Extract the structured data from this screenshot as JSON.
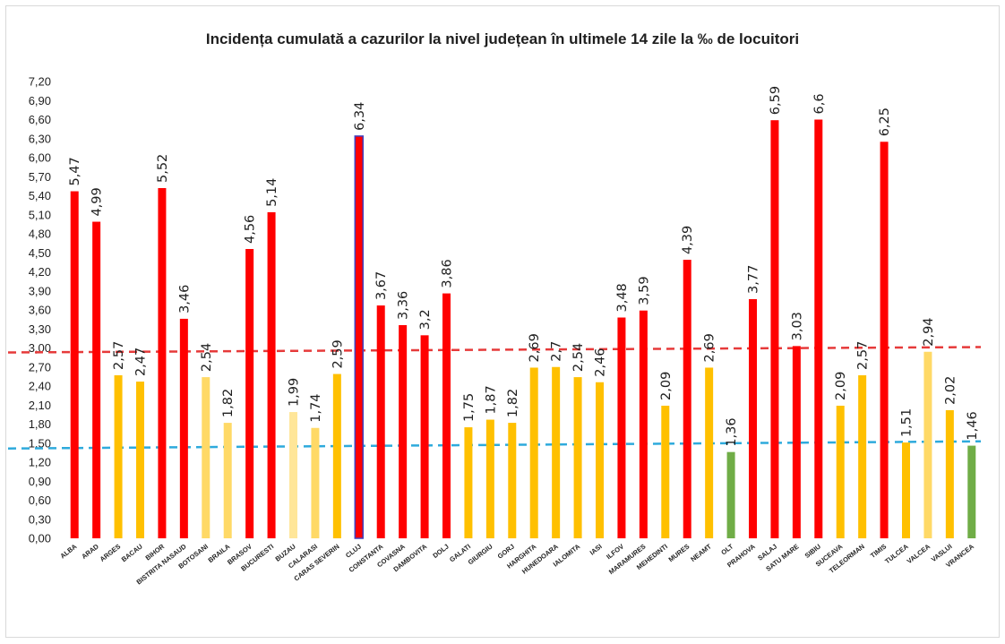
{
  "chart_data": {
    "type": "bar",
    "title": "Incidența cumulată a cazurilor la nivel județean în ultimele 14 zile la ‰ de locuitori",
    "xlabel": "",
    "ylabel": "",
    "ylim": [
      0,
      7.2
    ],
    "y_ticks": [
      "0,00",
      "0,30",
      "0,60",
      "0,90",
      "1,20",
      "1,50",
      "1,80",
      "2,10",
      "2,40",
      "2,70",
      "3,00",
      "3,30",
      "3,60",
      "3,90",
      "4,20",
      "4,50",
      "4,80",
      "5,10",
      "5,40",
      "5,70",
      "6,00",
      "6,30",
      "6,60",
      "6,90",
      "7,20"
    ],
    "grid": false,
    "legend": "none",
    "categories": [
      "ALBA",
      "ARAD",
      "ARGES",
      "BACAU",
      "BIHOR",
      "BISTRITA NASAUD",
      "BOTOSANI",
      "BRAILA",
      "BRASOV",
      "BUCURESTI",
      "BUZAU",
      "CALARASI",
      "CARAS SEVERIN",
      "CLUJ",
      "CONSTANTA",
      "COVASNA",
      "DAMBOVITA",
      "DOLJ",
      "GALATI",
      "GIURGIU",
      "GORJ",
      "HARGHITA",
      "HUNEDOARA",
      "IALOMITA",
      "IASI",
      "ILFOV",
      "MARAMURES",
      "MEHEDINTI",
      "MURES",
      "NEAMT",
      "OLT",
      "PRAHOVA",
      "SALAJ",
      "SATU MARE",
      "SIBIU",
      "SUCEAVA",
      "TELEORMAN",
      "TIMIS",
      "TULCEA",
      "VALCEA",
      "VASLUI",
      "VRANCEA"
    ],
    "values": [
      5.47,
      4.99,
      2.57,
      2.47,
      5.52,
      3.46,
      2.54,
      1.82,
      4.56,
      5.14,
      1.99,
      1.74,
      2.59,
      6.34,
      3.67,
      3.36,
      3.2,
      3.86,
      1.75,
      1.87,
      1.82,
      2.69,
      2.7,
      2.54,
      2.46,
      3.48,
      3.59,
      2.09,
      4.39,
      2.69,
      1.36,
      3.77,
      6.59,
      3.03,
      6.6,
      2.09,
      2.57,
      6.25,
      1.51,
      2.94,
      2.02,
      1.46
    ],
    "value_labels": [
      "5,47",
      "4,99",
      "2,57",
      "2,47",
      "5,52",
      "3,46",
      "2,54",
      "1,82",
      "4,56",
      "5,14",
      "1,99",
      "1,74",
      "2,59",
      "6,34",
      "3,67",
      "3,36",
      "3,2",
      "3,86",
      "1,75",
      "1,87",
      "1,82",
      "2,69",
      "2,7",
      "2,54",
      "2,46",
      "3,48",
      "3,59",
      "2,09",
      "4,39",
      "2,69",
      "1,36",
      "3,77",
      "6,59",
      "3,03",
      "6,6",
      "2,09",
      "2,57",
      "6,25",
      "1,51",
      "2,94",
      "2,02",
      "1,46"
    ],
    "bar_colors": [
      "#ff0000",
      "#ff0000",
      "#ffc000",
      "#ffc000",
      "#ff0000",
      "#ff0000",
      "#ffd966",
      "#ffd966",
      "#ff0000",
      "#ff0000",
      "#ffe699",
      "#ffd966",
      "#ffc000",
      "#ff0000",
      "#ff0000",
      "#ff0000",
      "#ff0000",
      "#ff0000",
      "#ffc000",
      "#ffc000",
      "#ffc000",
      "#ffc000",
      "#ffc000",
      "#ffc000",
      "#ffc000",
      "#ff0000",
      "#ff0000",
      "#ffc000",
      "#ff0000",
      "#ffc000",
      "#70ad47",
      "#ff0000",
      "#ff0000",
      "#ff0000",
      "#ff0000",
      "#ffc000",
      "#ffc000",
      "#ff0000",
      "#ffc000",
      "#ffd966",
      "#ffc000",
      "#70ad47"
    ],
    "bar_outline_cluj": "#4040c0",
    "threshold_lines": [
      {
        "value": 3.0,
        "color": "#e63a3a",
        "style": "dashed"
      },
      {
        "value": 1.5,
        "color": "#2eaadc",
        "style": "dashed"
      }
    ]
  }
}
